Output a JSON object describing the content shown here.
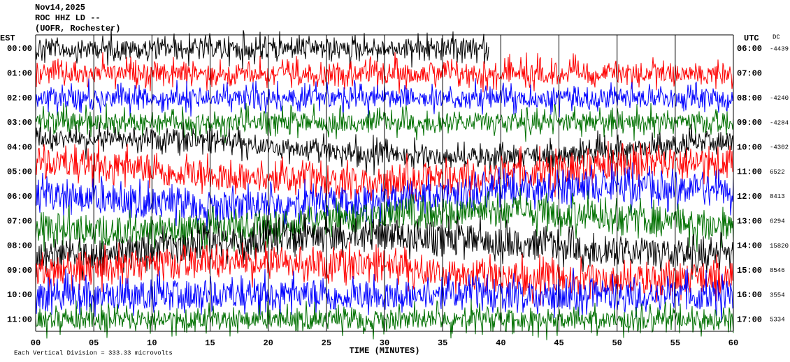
{
  "header": {
    "date": "Nov14,2025",
    "station": "ROC HHZ LD --",
    "location": "(UOFR, Rochester)"
  },
  "left_zone": "EST",
  "right_zone": "UTC",
  "dc_heading": "DC",
  "rows": [
    {
      "est": "00:00",
      "utc": "06:00",
      "dc": "-4439"
    },
    {
      "est": "01:00",
      "utc": "07:00",
      "dc": null
    },
    {
      "est": "02:00",
      "utc": "08:00",
      "dc": "-4240"
    },
    {
      "est": "03:00",
      "utc": "09:00",
      "dc": "-4284"
    },
    {
      "est": "04:00",
      "utc": "10:00",
      "dc": "-4302"
    },
    {
      "est": "05:00",
      "utc": "11:00",
      "dc": "6522"
    },
    {
      "est": "06:00",
      "utc": "12:00",
      "dc": "8413"
    },
    {
      "est": "07:00",
      "utc": "13:00",
      "dc": "6294"
    },
    {
      "est": "08:00",
      "utc": "14:00",
      "dc": "15820"
    },
    {
      "est": "09:00",
      "utc": "15:00",
      "dc": "8546"
    },
    {
      "est": "10:00",
      "utc": "16:00",
      "dc": "3554"
    },
    {
      "est": "11:00",
      "utc": "17:00",
      "dc": "5334"
    }
  ],
  "x_ticks": [
    "00",
    "05",
    "10",
    "15",
    "20",
    "25",
    "30",
    "35",
    "40",
    "45",
    "50",
    "55",
    "60"
  ],
  "x_label": "TIME (MINUTES)",
  "scale_note": "Each Vertical Division = 333.33 microvolts",
  "trace_colors": [
    "#000000",
    "#ff0000",
    "#0000ff",
    "#007000"
  ]
}
